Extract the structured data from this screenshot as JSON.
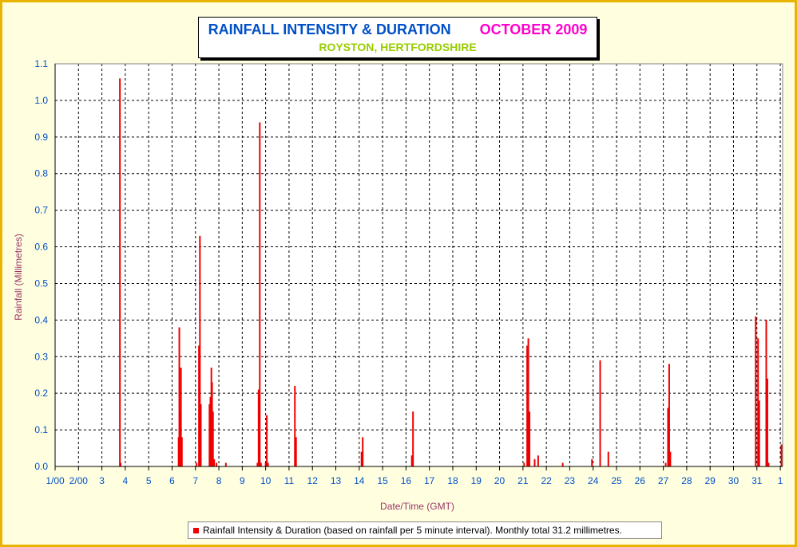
{
  "chart_data": {
    "type": "bar",
    "title": "RAINFALL INTENSITY & DURATION",
    "title_period": "OCTOBER 2009",
    "subtitle": "ROYSTON, HERTFORDSHIRE",
    "xlabel": "Date/Time (GMT)",
    "ylabel": "Rainfall (Millimetres)",
    "ylim": [
      0,
      1.1
    ],
    "yticks": [
      "0.0",
      "0.1",
      "0.2",
      "0.3",
      "0.4",
      "0.5",
      "0.6",
      "0.7",
      "0.8",
      "0.9",
      "1.0",
      "1.1"
    ],
    "x_day_range": [
      1,
      32.1
    ],
    "xticks": [
      "1/00",
      "2/00",
      "3",
      "4",
      "5",
      "6",
      "7",
      "8",
      "9",
      "10",
      "11",
      "12",
      "13",
      "14",
      "15",
      "16",
      "17",
      "18",
      "19",
      "20",
      "21",
      "22",
      "23",
      "24",
      "25",
      "26",
      "27",
      "28",
      "29",
      "30",
      "31",
      "1"
    ],
    "grid": true,
    "legend_position": "bottom",
    "x_unit": "day of month",
    "series": [
      {
        "name": "Rainfall Intensity & Duration (based on rainfall per 5 minute interval). Monthly total 31.2 millimetres.",
        "color": "#ee0000",
        "points": [
          [
            3.77,
            1.06
          ],
          [
            3.8,
            0.01
          ],
          [
            6.28,
            0.08
          ],
          [
            6.31,
            0.38
          ],
          [
            6.35,
            0.15
          ],
          [
            6.38,
            0.27
          ],
          [
            6.42,
            0.08
          ],
          [
            7.05,
            0.01
          ],
          [
            7.15,
            0.33
          ],
          [
            7.19,
            0.63
          ],
          [
            7.23,
            0.17
          ],
          [
            7.6,
            0.17
          ],
          [
            7.64,
            0.19
          ],
          [
            7.68,
            0.27
          ],
          [
            7.71,
            0.23
          ],
          [
            7.75,
            0.15
          ],
          [
            7.8,
            0.02
          ],
          [
            7.9,
            0.01
          ],
          [
            8.3,
            0.01
          ],
          [
            9.65,
            0.01
          ],
          [
            9.7,
            0.21
          ],
          [
            9.75,
            0.94
          ],
          [
            9.8,
            0.01
          ],
          [
            10.0,
            0.01
          ],
          [
            10.05,
            0.14
          ],
          [
            10.1,
            0.01
          ],
          [
            11.25,
            0.22
          ],
          [
            11.3,
            0.08
          ],
          [
            14.1,
            0.04
          ],
          [
            14.15,
            0.08
          ],
          [
            16.25,
            0.03
          ],
          [
            16.3,
            0.15
          ],
          [
            21.05,
            0.01
          ],
          [
            21.18,
            0.33
          ],
          [
            21.23,
            0.35
          ],
          [
            21.28,
            0.15
          ],
          [
            21.5,
            0.02
          ],
          [
            21.65,
            0.03
          ],
          [
            22.7,
            0.01
          ],
          [
            23.95,
            0.02
          ],
          [
            24.3,
            0.29
          ],
          [
            24.65,
            0.04
          ],
          [
            27.1,
            0.01
          ],
          [
            27.2,
            0.16
          ],
          [
            27.25,
            0.28
          ],
          [
            27.3,
            0.04
          ],
          [
            30.95,
            0.41
          ],
          [
            31.05,
            0.35
          ],
          [
            31.1,
            0.18
          ],
          [
            31.4,
            0.4
          ],
          [
            31.45,
            0.24
          ],
          [
            31.5,
            0.01
          ],
          [
            32.05,
            0.06
          ]
        ]
      }
    ]
  }
}
